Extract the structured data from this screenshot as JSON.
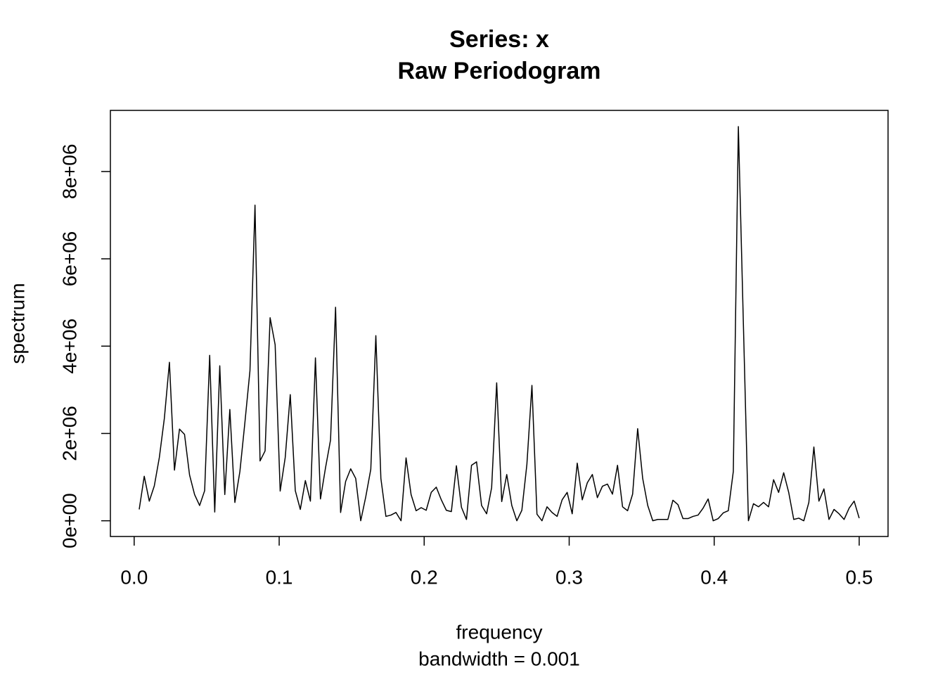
{
  "chart_data": {
    "type": "line",
    "title": "Series: x",
    "subtitle": "Raw Periodogram",
    "xlabel": "frequency",
    "xlabel_note": "bandwidth = 0.001",
    "ylabel": "spectrum",
    "color": "#000000",
    "xlim": [
      -0.0164,
      0.5199
    ],
    "ylim": [
      -360000,
      9400000
    ],
    "xticks": [
      {
        "value": 0,
        "label": "0.0"
      },
      0.1,
      0.2,
      0.3,
      0.4,
      0.5
    ],
    "yticks": [
      {
        "value": 0,
        "label": "0e+00"
      },
      {
        "value": 2000000,
        "label": "2e+06"
      },
      {
        "value": 4000000,
        "label": "4e+06"
      },
      {
        "value": 6000000,
        "label": "6e+06"
      },
      {
        "value": 8000000,
        "label": "8e+06"
      }
    ],
    "x": [
      0.00347,
      0.00694,
      0.01042,
      0.01389,
      0.01736,
      0.02083,
      0.02431,
      0.02778,
      0.03125,
      0.03472,
      0.03819,
      0.04167,
      0.04514,
      0.04861,
      0.05208,
      0.05556,
      0.05903,
      0.0625,
      0.06597,
      0.06944,
      0.07292,
      0.07639,
      0.07986,
      0.08333,
      0.08681,
      0.09028,
      0.09375,
      0.09722,
      0.10069,
      0.10417,
      0.10764,
      0.11111,
      0.11458,
      0.11806,
      0.12153,
      0.125,
      0.12847,
      0.13194,
      0.13542,
      0.13889,
      0.14236,
      0.14583,
      0.14931,
      0.15278,
      0.15625,
      0.15972,
      0.16319,
      0.16667,
      0.17014,
      0.17361,
      0.17708,
      0.18056,
      0.18403,
      0.1875,
      0.19097,
      0.19444,
      0.19792,
      0.20139,
      0.20486,
      0.20833,
      0.21181,
      0.21528,
      0.21875,
      0.22222,
      0.22569,
      0.22917,
      0.23264,
      0.23611,
      0.23958,
      0.24306,
      0.24653,
      0.25,
      0.25347,
      0.25694,
      0.26042,
      0.26389,
      0.26736,
      0.27083,
      0.27431,
      0.27778,
      0.28125,
      0.28472,
      0.28819,
      0.29167,
      0.29514,
      0.29861,
      0.30208,
      0.30556,
      0.30903,
      0.3125,
      0.31597,
      0.31944,
      0.32292,
      0.32639,
      0.32986,
      0.33333,
      0.33681,
      0.34028,
      0.34375,
      0.34722,
      0.35069,
      0.35417,
      0.35764,
      0.36111,
      0.36458,
      0.36806,
      0.37153,
      0.375,
      0.37847,
      0.38194,
      0.38542,
      0.38889,
      0.39236,
      0.39583,
      0.39931,
      0.40278,
      0.40625,
      0.40972,
      0.41319,
      0.41667,
      0.42014,
      0.42361,
      0.42708,
      0.43056,
      0.43403,
      0.4375,
      0.44097,
      0.44444,
      0.44792,
      0.45139,
      0.45486,
      0.45833,
      0.46181,
      0.46528,
      0.46875,
      0.47222,
      0.47569,
      0.47917,
      0.48264,
      0.48611,
      0.48958,
      0.49306,
      0.49653,
      0.5
    ],
    "values": [
      260000,
      1020000,
      450000,
      800000,
      1450000,
      2350000,
      3630000,
      1160000,
      2100000,
      1980000,
      1050000,
      600000,
      350000,
      690000,
      3790000,
      200000,
      3550000,
      600000,
      2550000,
      420000,
      1130000,
      2260000,
      3440000,
      7230000,
      1370000,
      1600000,
      4650000,
      4030000,
      680000,
      1450000,
      2890000,
      690000,
      260000,
      920000,
      450000,
      3730000,
      500000,
      1210000,
      1850000,
      4890000,
      190000,
      900000,
      1190000,
      970000,
      0,
      550000,
      1180000,
      4240000,
      970000,
      100000,
      130000,
      190000,
      0,
      1440000,
      600000,
      230000,
      300000,
      240000,
      650000,
      770000,
      480000,
      240000,
      210000,
      1260000,
      310000,
      30000,
      1270000,
      1350000,
      350000,
      160000,
      760000,
      3160000,
      440000,
      1060000,
      350000,
      0,
      240000,
      1290000,
      3100000,
      150000,
      0,
      320000,
      190000,
      100000,
      480000,
      650000,
      160000,
      1320000,
      480000,
      870000,
      1060000,
      530000,
      790000,
      840000,
      610000,
      1270000,
      320000,
      230000,
      610000,
      2110000,
      970000,
      350000,
      0,
      30000,
      30000,
      30000,
      470000,
      370000,
      50000,
      50000,
      100000,
      130000,
      290000,
      500000,
      0,
      50000,
      180000,
      230000,
      1130000,
      9030000,
      4500000,
      0,
      390000,
      320000,
      420000,
      320000,
      940000,
      650000,
      1100000,
      650000,
      30000,
      60000,
      0,
      420000,
      1690000,
      450000,
      730000,
      30000,
      260000,
      160000,
      30000,
      290000,
      450000,
      60000
    ]
  }
}
